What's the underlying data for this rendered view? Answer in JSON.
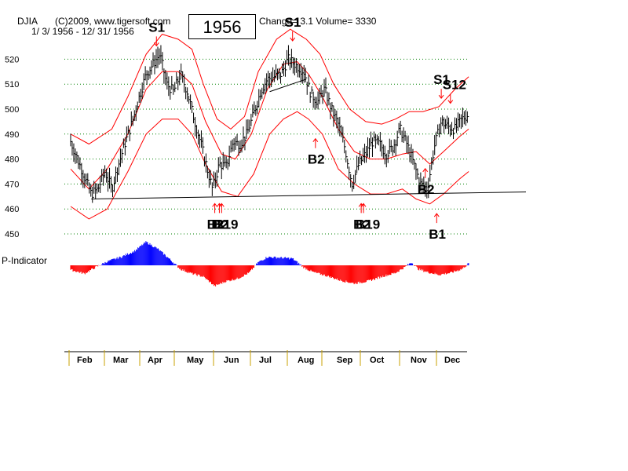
{
  "header": {
    "ticker": "DJIA",
    "copyright": "(C)2009, www.tigersoft.com",
    "date_range": "1/ 3/ 1956 - 12/ 31/ 1956",
    "year": "1956",
    "change_volume": "Change= 3.1 Volume= 3330"
  },
  "indicator_label": "P-Indicator",
  "colors": {
    "price": "#000000",
    "band": "#ff0000",
    "grid": "#008000",
    "indicator_pos": "#0000ff",
    "indicator_neg": "#ff0000",
    "arrow": "#ff0000"
  },
  "chart_data": {
    "type": "line",
    "title": "DJIA",
    "ylim": [
      445,
      535
    ],
    "yticks": [
      450,
      460,
      470,
      480,
      490,
      500,
      510,
      520
    ],
    "grid": "horizontal-dotted",
    "months": [
      "Feb",
      "Mar",
      "Apr",
      "May",
      "Jun",
      "Jul",
      "Aug",
      "Sep",
      "Oct",
      "Nov",
      "Dec"
    ],
    "price_close": [
      [
        0,
        487
      ],
      [
        0.3,
        480
      ],
      [
        0.6,
        473
      ],
      [
        0.9,
        466
      ],
      [
        1.2,
        468
      ],
      [
        1.5,
        475
      ],
      [
        1.8,
        468
      ],
      [
        2.1,
        478
      ],
      [
        2.4,
        487
      ],
      [
        2.7,
        495
      ],
      [
        3,
        505
      ],
      [
        3.3,
        514
      ],
      [
        3.6,
        518
      ],
      [
        3.9,
        522
      ],
      [
        4.2,
        510
      ],
      [
        4.5,
        507
      ],
      [
        4.8,
        514
      ],
      [
        5.1,
        507
      ],
      [
        5.4,
        496
      ],
      [
        5.7,
        486
      ],
      [
        6,
        475
      ],
      [
        6.2,
        468
      ],
      [
        6.5,
        478
      ],
      [
        6.8,
        477
      ],
      [
        7.1,
        487
      ],
      [
        7.4,
        486
      ],
      [
        7.7,
        490
      ],
      [
        8,
        498
      ],
      [
        8.3,
        507
      ],
      [
        8.6,
        512
      ],
      [
        8.9,
        513
      ],
      [
        9.2,
        514
      ],
      [
        9.5,
        520
      ],
      [
        9.8,
        518
      ],
      [
        10.2,
        515
      ],
      [
        10.5,
        506
      ],
      [
        10.8,
        503
      ],
      [
        11.1,
        508
      ],
      [
        11.4,
        500
      ],
      [
        11.7,
        494
      ],
      [
        12,
        484
      ],
      [
        12.3,
        470
      ],
      [
        12.6,
        478
      ],
      [
        12.9,
        482
      ],
      [
        13.2,
        487
      ],
      [
        13.5,
        486
      ],
      [
        13.8,
        482
      ],
      [
        14.1,
        485
      ],
      [
        14.4,
        492
      ],
      [
        14.7,
        486
      ],
      [
        15,
        478
      ],
      [
        15.3,
        470
      ],
      [
        15.6,
        468
      ],
      [
        15.9,
        485
      ],
      [
        16.2,
        495
      ],
      [
        16.5,
        493
      ],
      [
        16.8,
        492
      ],
      [
        17.1,
        496
      ],
      [
        17.4,
        498
      ]
    ],
    "band_upper": [
      [
        0,
        490
      ],
      [
        0.8,
        486
      ],
      [
        1.8,
        492
      ],
      [
        2.5,
        505
      ],
      [
        3.3,
        522
      ],
      [
        4,
        530
      ],
      [
        4.7,
        528
      ],
      [
        5.3,
        524
      ],
      [
        5.8,
        510
      ],
      [
        6.4,
        496
      ],
      [
        7,
        492
      ],
      [
        7.6,
        497
      ],
      [
        8.2,
        515
      ],
      [
        9,
        528
      ],
      [
        9.6,
        532
      ],
      [
        10.3,
        528
      ],
      [
        10.9,
        522
      ],
      [
        11.5,
        510
      ],
      [
        12.2,
        500
      ],
      [
        12.9,
        495
      ],
      [
        13.6,
        494
      ],
      [
        14.2,
        496
      ],
      [
        14.8,
        499
      ],
      [
        15.4,
        499
      ],
      [
        16.1,
        501
      ],
      [
        16.8,
        508
      ],
      [
        17.4,
        513
      ]
    ],
    "band_middle": [
      [
        0,
        476
      ],
      [
        0.8,
        468
      ],
      [
        1.6,
        476
      ],
      [
        2.5,
        490
      ],
      [
        3.3,
        508
      ],
      [
        4,
        515
      ],
      [
        4.7,
        515
      ],
      [
        5.3,
        510
      ],
      [
        5.9,
        495
      ],
      [
        6.6,
        482
      ],
      [
        7.2,
        480
      ],
      [
        7.9,
        490
      ],
      [
        8.6,
        508
      ],
      [
        9.3,
        518
      ],
      [
        9.9,
        519
      ],
      [
        10.4,
        514
      ],
      [
        11,
        505
      ],
      [
        11.7,
        492
      ],
      [
        12.4,
        483
      ],
      [
        13.1,
        480
      ],
      [
        13.8,
        480
      ],
      [
        14.5,
        482
      ],
      [
        15.1,
        483
      ],
      [
        15.7,
        478
      ],
      [
        16.3,
        483
      ],
      [
        17,
        489
      ],
      [
        17.4,
        492
      ]
    ],
    "band_lower": [
      [
        0,
        461
      ],
      [
        0.8,
        456
      ],
      [
        1.6,
        460
      ],
      [
        2.5,
        475
      ],
      [
        3.3,
        490
      ],
      [
        4,
        496
      ],
      [
        4.7,
        496
      ],
      [
        5.3,
        490
      ],
      [
        5.9,
        478
      ],
      [
        6.6,
        467
      ],
      [
        7.3,
        465
      ],
      [
        8,
        474
      ],
      [
        8.7,
        490
      ],
      [
        9.3,
        496
      ],
      [
        9.9,
        499
      ],
      [
        10.4,
        496
      ],
      [
        11,
        490
      ],
      [
        11.7,
        476
      ],
      [
        12.4,
        470
      ],
      [
        13.1,
        466
      ],
      [
        13.8,
        466
      ],
      [
        14.5,
        468
      ],
      [
        15.1,
        464
      ],
      [
        15.7,
        462
      ],
      [
        16.3,
        466
      ],
      [
        17,
        472
      ],
      [
        17.4,
        475
      ]
    ],
    "support_line": [
      [
        0.9,
        464
      ],
      [
        17.6,
        466.5
      ]
    ],
    "trend_line": [
      [
        8.7,
        507
      ],
      [
        10.3,
        512
      ]
    ],
    "indicator": [
      [
        0,
        -12
      ],
      [
        0.6,
        -22
      ],
      [
        1.1,
        -5
      ],
      [
        1.6,
        10
      ],
      [
        2.2,
        22
      ],
      [
        2.8,
        38
      ],
      [
        3.3,
        62
      ],
      [
        3.8,
        44
      ],
      [
        4.3,
        18
      ],
      [
        4.8,
        -10
      ],
      [
        5.3,
        -22
      ],
      [
        5.8,
        -30
      ],
      [
        6.3,
        -55
      ],
      [
        6.8,
        -42
      ],
      [
        7.3,
        -35
      ],
      [
        7.8,
        -20
      ],
      [
        8.2,
        8
      ],
      [
        8.6,
        22
      ],
      [
        9.2,
        20
      ],
      [
        9.7,
        18
      ],
      [
        10.2,
        -6
      ],
      [
        10.6,
        -18
      ],
      [
        11.2,
        -28
      ],
      [
        11.8,
        -40
      ],
      [
        12.4,
        -48
      ],
      [
        13,
        -42
      ],
      [
        13.6,
        -30
      ],
      [
        14.2,
        -20
      ],
      [
        14.6,
        -5
      ],
      [
        14.9,
        8
      ],
      [
        15.2,
        -10
      ],
      [
        15.6,
        -18
      ],
      [
        16.1,
        -25
      ],
      [
        16.6,
        -20
      ],
      [
        17.1,
        -10
      ],
      [
        17.4,
        5
      ]
    ],
    "signals": [
      {
        "label": "S1",
        "x": 3.75,
        "price": 531,
        "dir": "down"
      },
      {
        "label": "S1",
        "x": 9.7,
        "price": 533,
        "dir": "down"
      },
      {
        "label": "S1",
        "x": 16.2,
        "price": 510,
        "dir": "down"
      },
      {
        "label": "S12",
        "x": 16.6,
        "price": 508,
        "dir": "down"
      },
      {
        "label": "B2",
        "x": 6.3,
        "price": 459,
        "dir": "up"
      },
      {
        "label": "B2",
        "x": 6.5,
        "price": 459,
        "dir": "up"
      },
      {
        "label": "B19",
        "x": 6.6,
        "price": 459,
        "dir": "up"
      },
      {
        "label": "B2",
        "x": 10.7,
        "price": 485,
        "dir": "up"
      },
      {
        "label": "B2",
        "x": 12.7,
        "price": 459,
        "dir": "up"
      },
      {
        "label": "B19",
        "x": 12.8,
        "price": 459,
        "dir": "up"
      },
      {
        "label": "B2",
        "x": 15.5,
        "price": 473,
        "dir": "up"
      },
      {
        "label": "B1",
        "x": 16.0,
        "price": 455,
        "dir": "up"
      }
    ]
  }
}
